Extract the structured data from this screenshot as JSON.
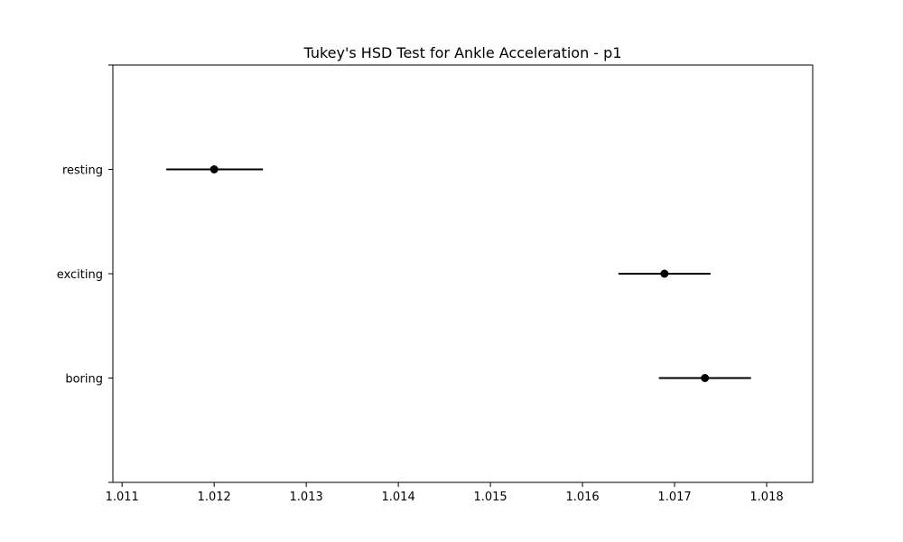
{
  "chart_data": {
    "type": "scatter",
    "title": "Tukey's HSD Test for Ankle Acceleration - p1",
    "xlabel": "",
    "ylabel": "",
    "xlim": [
      1.0109,
      1.0185
    ],
    "x_ticks": [
      1.011,
      1.012,
      1.013,
      1.014,
      1.015,
      1.016,
      1.017,
      1.018
    ],
    "x_tick_labels": [
      "1.011",
      "1.012",
      "1.013",
      "1.014",
      "1.015",
      "1.016",
      "1.017",
      "1.018"
    ],
    "categories": [
      "resting",
      "exciting",
      "boring"
    ],
    "groups": [
      {
        "label": "resting",
        "mean": 1.012,
        "lower": 1.01148,
        "upper": 1.01253
      },
      {
        "label": "exciting",
        "mean": 1.01689,
        "lower": 1.01639,
        "upper": 1.01739
      },
      {
        "label": "boring",
        "mean": 1.01733,
        "lower": 1.01683,
        "upper": 1.01783
      }
    ],
    "grid": false,
    "marker_color": "#000000",
    "line_color": "#000000"
  }
}
